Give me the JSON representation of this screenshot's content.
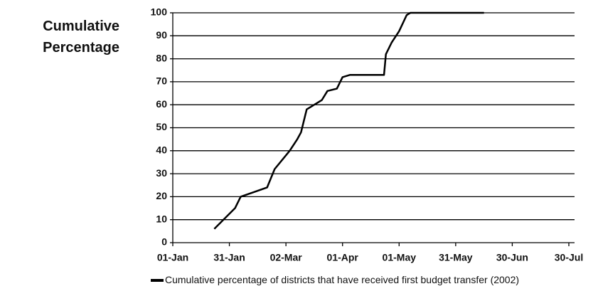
{
  "chart_data": {
    "type": "line",
    "ylabel": "Cumulative Percentage",
    "x": [
      23,
      34,
      37,
      51,
      55,
      63,
      67,
      69,
      72,
      80,
      83,
      88,
      91,
      95,
      113,
      114,
      117,
      121,
      125,
      127,
      166
    ],
    "series": [
      {
        "name": "Cumulative percentage of districts that have received first budget transfer (2002)",
        "color": "#000000",
        "values": [
          6,
          15,
          20,
          24,
          32,
          40,
          45,
          48,
          58,
          62,
          66,
          67,
          72,
          73,
          73,
          82,
          87,
          92,
          99,
          100,
          100
        ]
      }
    ],
    "xlim": [
      1,
      211
    ],
    "xticks": [
      {
        "value": 1,
        "label": "01-Jan"
      },
      {
        "value": 31,
        "label": "31-Jan"
      },
      {
        "value": 61,
        "label": "02-Mar"
      },
      {
        "value": 91,
        "label": "01-Apr"
      },
      {
        "value": 121,
        "label": "01-May"
      },
      {
        "value": 151,
        "label": "31-May"
      },
      {
        "value": 181,
        "label": "30-Jun"
      },
      {
        "value": 211,
        "label": "30-Jul"
      }
    ],
    "ylim": [
      0,
      100
    ],
    "yticks": [
      0,
      10,
      20,
      30,
      40,
      50,
      60,
      70,
      80,
      90,
      100
    ],
    "grid": true
  }
}
